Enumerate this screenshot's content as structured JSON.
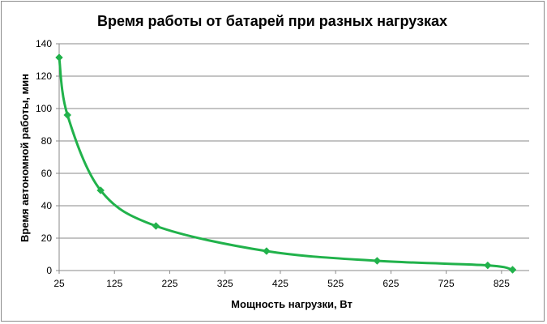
{
  "chart_data": {
    "type": "line",
    "title": "Время работы  от батарей  при разных  нагрузках",
    "xlabel": "Мощность нагрузки, Вт",
    "ylabel": "Время автономной работы, мин",
    "xlim": [
      25,
      875
    ],
    "ylim": [
      0,
      140
    ],
    "x_ticks": [
      25,
      125,
      225,
      325,
      425,
      525,
      625,
      725,
      825
    ],
    "y_ticks": [
      0,
      20,
      40,
      60,
      80,
      100,
      120,
      140
    ],
    "grid": true,
    "series": [
      {
        "color": "#21b24b",
        "marker": "diamond",
        "smooth": true,
        "points": [
          {
            "x": 25,
            "y": 131.5
          },
          {
            "x": 40,
            "y": 96
          },
          {
            "x": 100,
            "y": 49.5
          },
          {
            "x": 200,
            "y": 27.5
          },
          {
            "x": 400,
            "y": 12
          },
          {
            "x": 600,
            "y": 6
          },
          {
            "x": 800,
            "y": 3.2
          },
          {
            "x": 845,
            "y": 0.5
          }
        ]
      }
    ]
  }
}
